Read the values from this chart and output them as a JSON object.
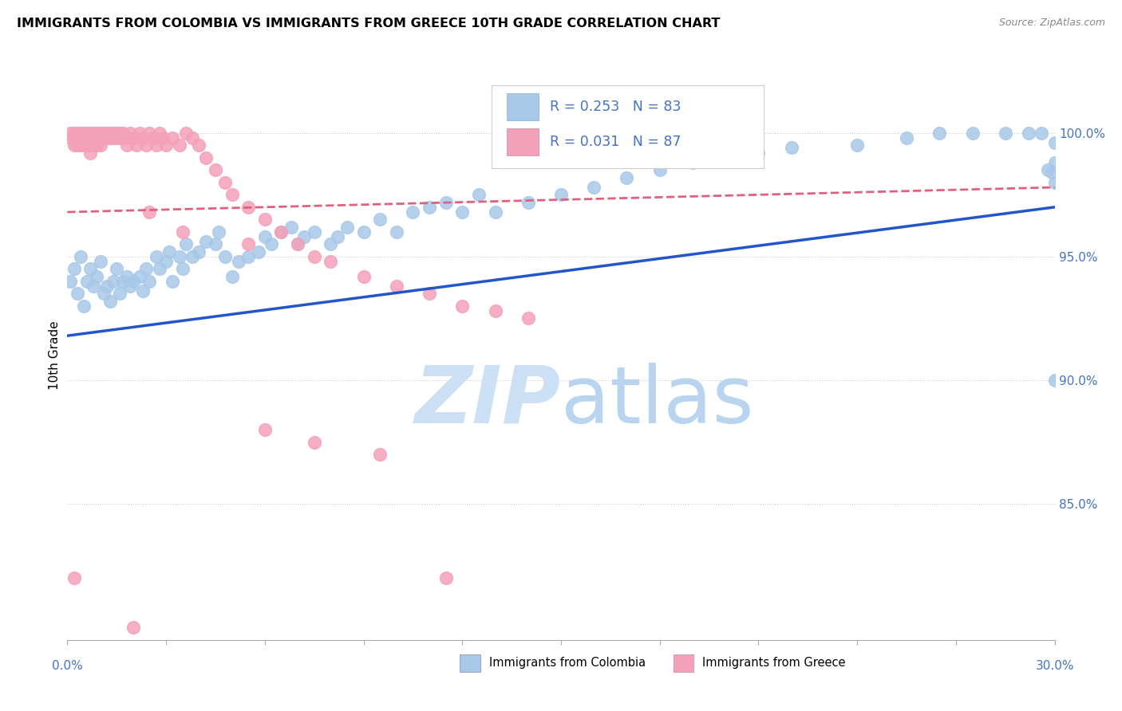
{
  "title": "IMMIGRANTS FROM COLOMBIA VS IMMIGRANTS FROM GREECE 10TH GRADE CORRELATION CHART",
  "source": "Source: ZipAtlas.com",
  "ylabel": "10th Grade",
  "ylabel_right_ticks": [
    "100.0%",
    "95.0%",
    "90.0%",
    "85.0%"
  ],
  "ylabel_right_vals": [
    1.0,
    0.95,
    0.9,
    0.85
  ],
  "color_colombia": "#a8c8e8",
  "color_greece": "#f4a0b8",
  "color_blue_line": "#2255CC",
  "color_pink_line": "#E06080",
  "color_blue_text": "#4472C4",
  "watermark_color": "#cce0f5",
  "xmin": 0.0,
  "xmax": 0.3,
  "ymin": 0.795,
  "ymax": 1.025,
  "colombia_R": 0.253,
  "colombia_N": 83,
  "greece_R": 0.031,
  "greece_N": 87,
  "colombia_trend_x": [
    0.0,
    0.3
  ],
  "colombia_trend_y": [
    0.918,
    0.97
  ],
  "greece_trend_x": [
    0.0,
    0.3
  ],
  "greece_trend_y": [
    0.968,
    0.978
  ],
  "colombia_scatter_x": [
    0.001,
    0.002,
    0.003,
    0.004,
    0.005,
    0.006,
    0.007,
    0.008,
    0.009,
    0.01,
    0.011,
    0.012,
    0.013,
    0.014,
    0.015,
    0.016,
    0.017,
    0.018,
    0.019,
    0.02,
    0.022,
    0.023,
    0.024,
    0.025,
    0.027,
    0.028,
    0.03,
    0.031,
    0.032,
    0.034,
    0.035,
    0.036,
    0.038,
    0.04,
    0.042,
    0.045,
    0.046,
    0.048,
    0.05,
    0.052,
    0.055,
    0.058,
    0.06,
    0.062,
    0.065,
    0.068,
    0.07,
    0.072,
    0.075,
    0.08,
    0.082,
    0.085,
    0.09,
    0.095,
    0.1,
    0.105,
    0.11,
    0.115,
    0.12,
    0.125,
    0.13,
    0.14,
    0.15,
    0.16,
    0.17,
    0.18,
    0.19,
    0.2,
    0.21,
    0.22,
    0.24,
    0.255,
    0.265,
    0.275,
    0.285,
    0.292,
    0.296,
    0.298,
    0.299,
    0.3,
    0.3,
    0.3,
    0.3
  ],
  "colombia_scatter_y": [
    0.94,
    0.945,
    0.935,
    0.95,
    0.93,
    0.94,
    0.945,
    0.938,
    0.942,
    0.948,
    0.935,
    0.938,
    0.932,
    0.94,
    0.945,
    0.935,
    0.94,
    0.942,
    0.938,
    0.94,
    0.942,
    0.936,
    0.945,
    0.94,
    0.95,
    0.945,
    0.948,
    0.952,
    0.94,
    0.95,
    0.945,
    0.955,
    0.95,
    0.952,
    0.956,
    0.955,
    0.96,
    0.95,
    0.942,
    0.948,
    0.95,
    0.952,
    0.958,
    0.955,
    0.96,
    0.962,
    0.955,
    0.958,
    0.96,
    0.955,
    0.958,
    0.962,
    0.96,
    0.965,
    0.96,
    0.968,
    0.97,
    0.972,
    0.968,
    0.975,
    0.968,
    0.972,
    0.975,
    0.978,
    0.982,
    0.985,
    0.988,
    0.99,
    0.992,
    0.994,
    0.995,
    0.998,
    1.0,
    1.0,
    1.0,
    1.0,
    1.0,
    0.985,
    0.984,
    0.996,
    0.988,
    0.9,
    0.98
  ],
  "greece_scatter_x": [
    0.001,
    0.001,
    0.002,
    0.002,
    0.002,
    0.003,
    0.003,
    0.003,
    0.004,
    0.004,
    0.004,
    0.005,
    0.005,
    0.005,
    0.006,
    0.006,
    0.006,
    0.007,
    0.007,
    0.007,
    0.007,
    0.008,
    0.008,
    0.008,
    0.009,
    0.009,
    0.009,
    0.01,
    0.01,
    0.01,
    0.011,
    0.011,
    0.012,
    0.012,
    0.013,
    0.013,
    0.014,
    0.014,
    0.015,
    0.015,
    0.016,
    0.016,
    0.017,
    0.018,
    0.018,
    0.019,
    0.02,
    0.021,
    0.022,
    0.023,
    0.024,
    0.025,
    0.026,
    0.027,
    0.028,
    0.029,
    0.03,
    0.032,
    0.034,
    0.036,
    0.038,
    0.04,
    0.042,
    0.045,
    0.048,
    0.05,
    0.055,
    0.06,
    0.065,
    0.07,
    0.075,
    0.08,
    0.09,
    0.1,
    0.11,
    0.12,
    0.13,
    0.14,
    0.06,
    0.025,
    0.035,
    0.055,
    0.075,
    0.095,
    0.115,
    0.002,
    0.02
  ],
  "greece_scatter_y": [
    1.0,
    0.998,
    1.0,
    0.998,
    0.995,
    1.0,
    0.998,
    0.995,
    1.0,
    0.998,
    0.995,
    1.0,
    0.998,
    0.995,
    1.0,
    0.998,
    0.995,
    1.0,
    0.998,
    0.995,
    0.992,
    1.0,
    0.998,
    0.995,
    1.0,
    0.998,
    0.995,
    1.0,
    0.998,
    0.995,
    1.0,
    0.998,
    1.0,
    0.998,
    1.0,
    0.998,
    1.0,
    0.998,
    1.0,
    0.998,
    1.0,
    0.998,
    1.0,
    0.998,
    0.995,
    1.0,
    0.998,
    0.995,
    1.0,
    0.998,
    0.995,
    1.0,
    0.998,
    0.995,
    1.0,
    0.998,
    0.995,
    0.998,
    0.995,
    1.0,
    0.998,
    0.995,
    0.99,
    0.985,
    0.98,
    0.975,
    0.97,
    0.965,
    0.96,
    0.955,
    0.95,
    0.948,
    0.942,
    0.938,
    0.935,
    0.93,
    0.928,
    0.925,
    0.88,
    0.968,
    0.96,
    0.955,
    0.875,
    0.87,
    0.82,
    0.82,
    0.8
  ]
}
